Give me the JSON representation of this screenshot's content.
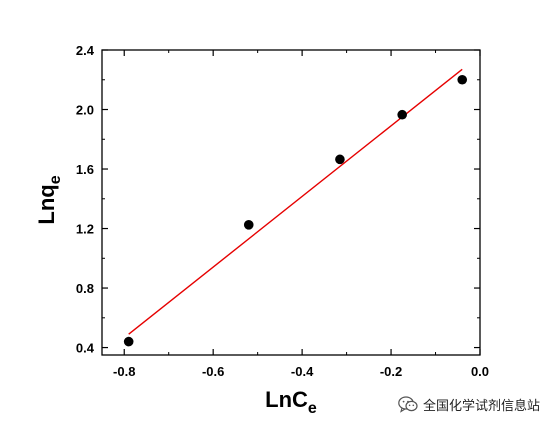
{
  "chart_data": {
    "type": "scatter",
    "title": "",
    "xlabel": "LnC",
    "xlabel_sub": "e",
    "ylabel": "Lnq",
    "ylabel_sub": "e",
    "xlim": [
      -0.85,
      0.0
    ],
    "ylim": [
      0.35,
      2.4
    ],
    "xticks": [
      -0.8,
      -0.6,
      -0.4,
      -0.2,
      0.0
    ],
    "xtick_labels": [
      "-0.8",
      "-0.6",
      "-0.4",
      "-0.2",
      "0.0"
    ],
    "yticks": [
      0.4,
      0.8,
      1.2,
      1.6,
      2.0,
      2.4
    ],
    "ytick_labels": [
      "0.4",
      "0.8",
      "1.2",
      "1.6",
      "2.0",
      "2.4"
    ],
    "grid": false,
    "series": [
      {
        "type": "scatter",
        "color": "#000000",
        "x": [
          -0.79,
          -0.52,
          -0.315,
          -0.175,
          -0.04
        ],
        "y": [
          0.44,
          1.225,
          1.665,
          1.965,
          2.2
        ]
      },
      {
        "type": "line",
        "color": "#e60000",
        "x": [
          -0.79,
          -0.04
        ],
        "y": [
          0.49,
          2.27
        ]
      }
    ]
  },
  "watermark": {
    "text": "全国化学试剂信息站",
    "icon": "wechat-icon"
  }
}
